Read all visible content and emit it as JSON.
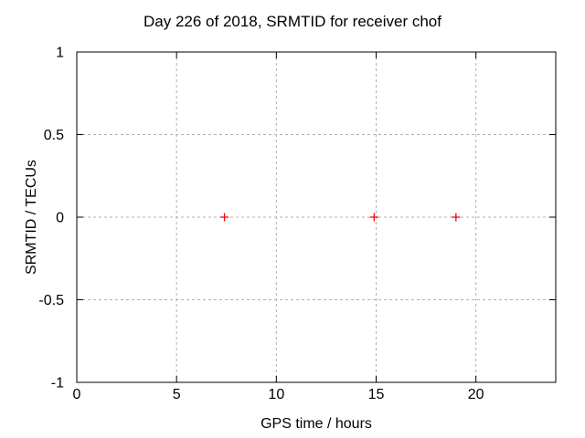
{
  "figure": {
    "background": "#ffffff",
    "border_color": "#000000",
    "grid_color": "#b0b0b0",
    "text_color": "#000000"
  },
  "chart_data": {
    "type": "scatter",
    "title": "Day 226 of 2018, SRMTID for receiver chof",
    "xlabel": "GPS time / hours",
    "ylabel": "SRMTID / TECUs",
    "xlim": [
      0,
      24
    ],
    "ylim": [
      -1,
      1
    ],
    "xticks": [
      0,
      5,
      10,
      15,
      20
    ],
    "yticks": [
      -1,
      -0.5,
      0,
      0.5,
      1
    ],
    "grid": true,
    "legend": "none",
    "series": [
      {
        "name": "SRMTID",
        "marker": "plus",
        "color": "#ff0000",
        "points": [
          {
            "x": 7.4,
            "y": 0.0
          },
          {
            "x": 14.9,
            "y": 0.0
          },
          {
            "x": 19.0,
            "y": 0.0
          }
        ]
      }
    ]
  }
}
